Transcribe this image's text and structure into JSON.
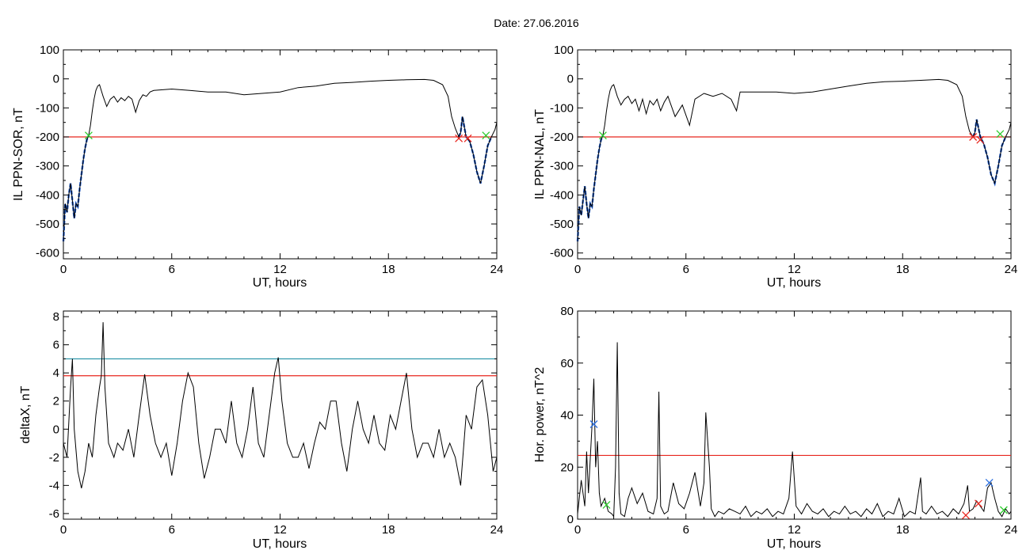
{
  "title": "Date:  27.06.2016",
  "colors": {
    "axis": "#000000",
    "trace": "#000000",
    "threshold": "#e8261e",
    "threshold2": "#1f8fa6",
    "active": "#1f5fd6",
    "marker_green": "#2ecc2e",
    "marker_red": "#e8261e",
    "marker_blue": "#2b6fe0"
  },
  "chart_data": [
    {
      "type": "line",
      "id": "il-sor",
      "xlabel": "UT, hours",
      "ylabel": "IL PPN-SOR, nT",
      "xlim": [
        0,
        24
      ],
      "ylim": [
        -620,
        100
      ],
      "xticks": [
        0,
        6,
        12,
        18,
        24
      ],
      "yticks": [
        100,
        0,
        -100,
        -200,
        -300,
        -400,
        -500,
        -600
      ],
      "threshold": -200,
      "series": [
        {
          "x": [
            0,
            0.1,
            0.2,
            0.3,
            0.4,
            0.5,
            0.6,
            0.7,
            0.8,
            0.9,
            1.0,
            1.1,
            1.2,
            1.3,
            1.4,
            1.5,
            1.6,
            1.7,
            1.8,
            1.9,
            2.0,
            2.2,
            2.4,
            2.6,
            2.8,
            3.0,
            3.2,
            3.4,
            3.6,
            3.8,
            4.0,
            4.2,
            4.4,
            4.6,
            4.8,
            5,
            6,
            7,
            8,
            9,
            10,
            11,
            12,
            13,
            14,
            15,
            16,
            17,
            18,
            19,
            20,
            20.5,
            21,
            21.3,
            21.5,
            21.7,
            21.9,
            22.0,
            22.1,
            22.3,
            22.5,
            22.7,
            22.9,
            23.1,
            23.3,
            23.5,
            23.7,
            23.9,
            24
          ],
          "y": [
            -560,
            -430,
            -460,
            -400,
            -360,
            -420,
            -480,
            -430,
            -440,
            -380,
            -330,
            -280,
            -240,
            -210,
            -195,
            -160,
            -110,
            -70,
            -40,
            -25,
            -20,
            -60,
            -95,
            -70,
            -60,
            -80,
            -65,
            -75,
            -60,
            -70,
            -115,
            -75,
            -55,
            -60,
            -45,
            -40,
            -35,
            -40,
            -45,
            -45,
            -55,
            -50,
            -45,
            -30,
            -25,
            -15,
            -12,
            -8,
            -5,
            -3,
            -2,
            -5,
            -20,
            -60,
            -130,
            -170,
            -200,
            -185,
            -130,
            -200,
            -215,
            -260,
            -320,
            -360,
            -300,
            -230,
            -200,
            -175,
            -150
          ]
        }
      ],
      "active_ranges": [
        [
          0,
          1.4
        ],
        [
          21.9,
          23.7
        ]
      ],
      "markers": [
        {
          "x": 1.4,
          "y": -195,
          "color": "green"
        },
        {
          "x": 21.9,
          "y": -205,
          "color": "red"
        },
        {
          "x": 22.4,
          "y": -205,
          "color": "red"
        },
        {
          "x": 23.4,
          "y": -195,
          "color": "green"
        }
      ]
    },
    {
      "type": "line",
      "id": "il-nal",
      "xlabel": "UT, hours",
      "ylabel": "IL PPN-NAL, nT",
      "xlim": [
        0,
        24
      ],
      "ylim": [
        -620,
        100
      ],
      "xticks": [
        0,
        6,
        12,
        18,
        24
      ],
      "yticks": [
        100,
        0,
        -100,
        -200,
        -300,
        -400,
        -500,
        -600
      ],
      "threshold": -200,
      "series": [
        {
          "x": [
            0,
            0.1,
            0.2,
            0.3,
            0.4,
            0.5,
            0.6,
            0.7,
            0.8,
            0.9,
            1.0,
            1.1,
            1.2,
            1.3,
            1.4,
            1.5,
            1.6,
            1.7,
            1.8,
            1.9,
            2.0,
            2.2,
            2.4,
            2.6,
            2.8,
            3.0,
            3.2,
            3.4,
            3.6,
            3.8,
            4.0,
            4.2,
            4.4,
            4.6,
            4.8,
            5.0,
            5.4,
            5.8,
            6.2,
            6.5,
            7,
            7.5,
            8,
            8.5,
            8.8,
            9,
            10,
            11,
            12,
            13,
            14,
            15,
            16,
            17,
            18,
            19,
            20,
            20.5,
            21,
            21.3,
            21.5,
            21.7,
            21.9,
            22.0,
            22.1,
            22.3,
            22.5,
            22.7,
            22.9,
            23.1,
            23.3,
            23.5,
            23.7,
            23.9,
            24
          ],
          "y": [
            -560,
            -440,
            -470,
            -420,
            -370,
            -430,
            -480,
            -430,
            -440,
            -380,
            -330,
            -280,
            -240,
            -210,
            -195,
            -160,
            -110,
            -70,
            -40,
            -25,
            -20,
            -60,
            -90,
            -70,
            -60,
            -85,
            -70,
            -110,
            -70,
            -120,
            -75,
            -90,
            -70,
            -110,
            -80,
            -60,
            -130,
            -90,
            -160,
            -70,
            -50,
            -60,
            -50,
            -70,
            -110,
            -45,
            -45,
            -45,
            -50,
            -45,
            -35,
            -25,
            -15,
            -10,
            -8,
            -5,
            -2,
            -5,
            -20,
            -60,
            -130,
            -180,
            -200,
            -185,
            -140,
            -200,
            -225,
            -270,
            -330,
            -360,
            -300,
            -230,
            -200,
            -175,
            -150
          ]
        }
      ],
      "active_ranges": [
        [
          0,
          1.4
        ],
        [
          21.9,
          23.7
        ]
      ],
      "markers": [
        {
          "x": 1.4,
          "y": -195,
          "color": "green"
        },
        {
          "x": 21.9,
          "y": -200,
          "color": "red"
        },
        {
          "x": 22.3,
          "y": -210,
          "color": "red"
        },
        {
          "x": 23.4,
          "y": -190,
          "color": "green"
        }
      ]
    },
    {
      "type": "line",
      "id": "deltax",
      "xlabel": "UT, hours",
      "ylabel": "deltaX, nT",
      "xlim": [
        0,
        24
      ],
      "ylim": [
        -6.4,
        8.4
      ],
      "xticks": [
        0,
        6,
        12,
        18,
        24
      ],
      "yticks": [
        8,
        6,
        4,
        2,
        0,
        -2,
        -4,
        -6
      ],
      "threshold": 3.8,
      "threshold2": 5.0,
      "series": [
        {
          "x": [
            0,
            0.2,
            0.4,
            0.5,
            0.6,
            0.8,
            1.0,
            1.2,
            1.4,
            1.6,
            1.8,
            2.0,
            2.1,
            2.2,
            2.3,
            2.5,
            2.8,
            3.0,
            3.3,
            3.6,
            3.9,
            4.2,
            4.5,
            4.8,
            5.1,
            5.4,
            5.7,
            6.0,
            6.3,
            6.6,
            6.9,
            7.2,
            7.5,
            7.8,
            8.1,
            8.4,
            8.7,
            9.0,
            9.3,
            9.6,
            9.9,
            10.2,
            10.5,
            10.8,
            11.1,
            11.4,
            11.7,
            11.9,
            12.1,
            12.4,
            12.7,
            13.0,
            13.3,
            13.6,
            13.9,
            14.2,
            14.5,
            14.8,
            15.1,
            15.4,
            15.7,
            16.0,
            16.3,
            16.6,
            16.9,
            17.2,
            17.5,
            17.8,
            18.1,
            18.4,
            18.7,
            19.0,
            19.3,
            19.6,
            19.9,
            20.2,
            20.5,
            20.8,
            21.1,
            21.4,
            21.7,
            22.0,
            22.3,
            22.6,
            22.9,
            23.2,
            23.5,
            23.8,
            24
          ],
          "y": [
            -1,
            -2,
            3,
            5,
            0,
            -3,
            -4.2,
            -3,
            -1,
            -2,
            1,
            3,
            3.8,
            7.6,
            3,
            -1,
            -2,
            -1,
            -1.5,
            0,
            -2,
            1,
            3.9,
            1,
            -1,
            -2,
            -1,
            -3.3,
            -1,
            2,
            4,
            3,
            -1,
            -3.5,
            -2,
            0,
            0,
            -1,
            2,
            -1,
            -2,
            0,
            3,
            -1,
            -2,
            1,
            4,
            5.1,
            2,
            -1,
            -2,
            -2,
            -1,
            -2.8,
            -1,
            0.5,
            0,
            2,
            2,
            -1,
            -3,
            0,
            2,
            0,
            -1,
            1,
            -1,
            -1.5,
            1,
            0,
            2,
            4,
            0,
            -2,
            -1,
            -1,
            -2,
            0,
            -2,
            -1,
            -2,
            -4,
            1,
            0,
            3,
            3.5,
            1,
            -3,
            -2
          ]
        }
      ]
    },
    {
      "type": "line",
      "id": "hor-power",
      "xlabel": "UT, hours",
      "ylabel": "Hor. power, nT^2",
      "xlim": [
        0,
        24
      ],
      "ylim": [
        0,
        80
      ],
      "xticks": [
        0,
        6,
        12,
        18,
        24
      ],
      "yticks": [
        80,
        60,
        40,
        20,
        0
      ],
      "threshold": 24.5,
      "series": [
        {
          "x": [
            0,
            0.2,
            0.4,
            0.5,
            0.6,
            0.8,
            0.9,
            1.0,
            1.1,
            1.2,
            1.3,
            1.5,
            1.7,
            1.9,
            2.0,
            2.1,
            2.2,
            2.3,
            2.4,
            2.6,
            2.8,
            3.0,
            3.3,
            3.6,
            3.9,
            4.2,
            4.4,
            4.5,
            4.6,
            4.8,
            5.0,
            5.3,
            5.6,
            5.9,
            6.2,
            6.5,
            6.8,
            7.0,
            7.1,
            7.3,
            7.4,
            7.6,
            7.8,
            8.1,
            8.4,
            8.7,
            9.0,
            9.3,
            9.6,
            9.9,
            10.2,
            10.5,
            10.8,
            11.1,
            11.4,
            11.7,
            11.9,
            12.1,
            12.4,
            12.7,
            13.0,
            13.3,
            13.6,
            13.9,
            14.2,
            14.5,
            14.8,
            15.1,
            15.4,
            15.7,
            16.0,
            16.3,
            16.6,
            16.9,
            17.2,
            17.5,
            17.8,
            18.1,
            18.4,
            18.7,
            19.0,
            19.1,
            19.3,
            19.6,
            19.9,
            20.2,
            20.5,
            20.8,
            21.1,
            21.4,
            21.6,
            21.7,
            21.9,
            22.1,
            22.3,
            22.5,
            22.7,
            22.9,
            23.1,
            23.3,
            23.5,
            23.7,
            23.9,
            24
          ],
          "y": [
            2,
            15,
            5,
            26,
            10,
            36,
            54,
            20,
            30,
            10,
            5,
            8,
            3,
            2,
            1,
            20,
            68,
            10,
            2,
            1,
            8,
            12,
            6,
            10,
            3,
            2,
            8,
            49,
            5,
            2,
            3,
            14,
            6,
            4,
            10,
            18,
            5,
            14,
            41,
            20,
            4,
            1,
            3,
            2,
            4,
            3,
            2,
            5,
            1,
            3,
            2,
            4,
            1,
            3,
            2,
            8,
            26,
            5,
            2,
            6,
            3,
            2,
            4,
            1,
            3,
            2,
            5,
            2,
            3,
            1,
            4,
            2,
            6,
            1,
            3,
            2,
            8,
            1,
            3,
            2,
            16,
            3,
            2,
            5,
            2,
            3,
            1,
            4,
            2,
            6,
            13,
            3,
            4,
            7,
            5,
            3,
            12,
            14,
            8,
            3,
            1,
            4,
            2,
            3
          ]
        }
      ],
      "markers": [
        {
          "x": 0.9,
          "y": 36.5,
          "color": "blue"
        },
        {
          "x": 1.6,
          "y": 5.5,
          "color": "green"
        },
        {
          "x": 21.5,
          "y": 1.5,
          "color": "red"
        },
        {
          "x": 22.2,
          "y": 6,
          "color": "red"
        },
        {
          "x": 22.8,
          "y": 14,
          "color": "blue"
        },
        {
          "x": 23.6,
          "y": 3.5,
          "color": "green"
        }
      ]
    }
  ]
}
